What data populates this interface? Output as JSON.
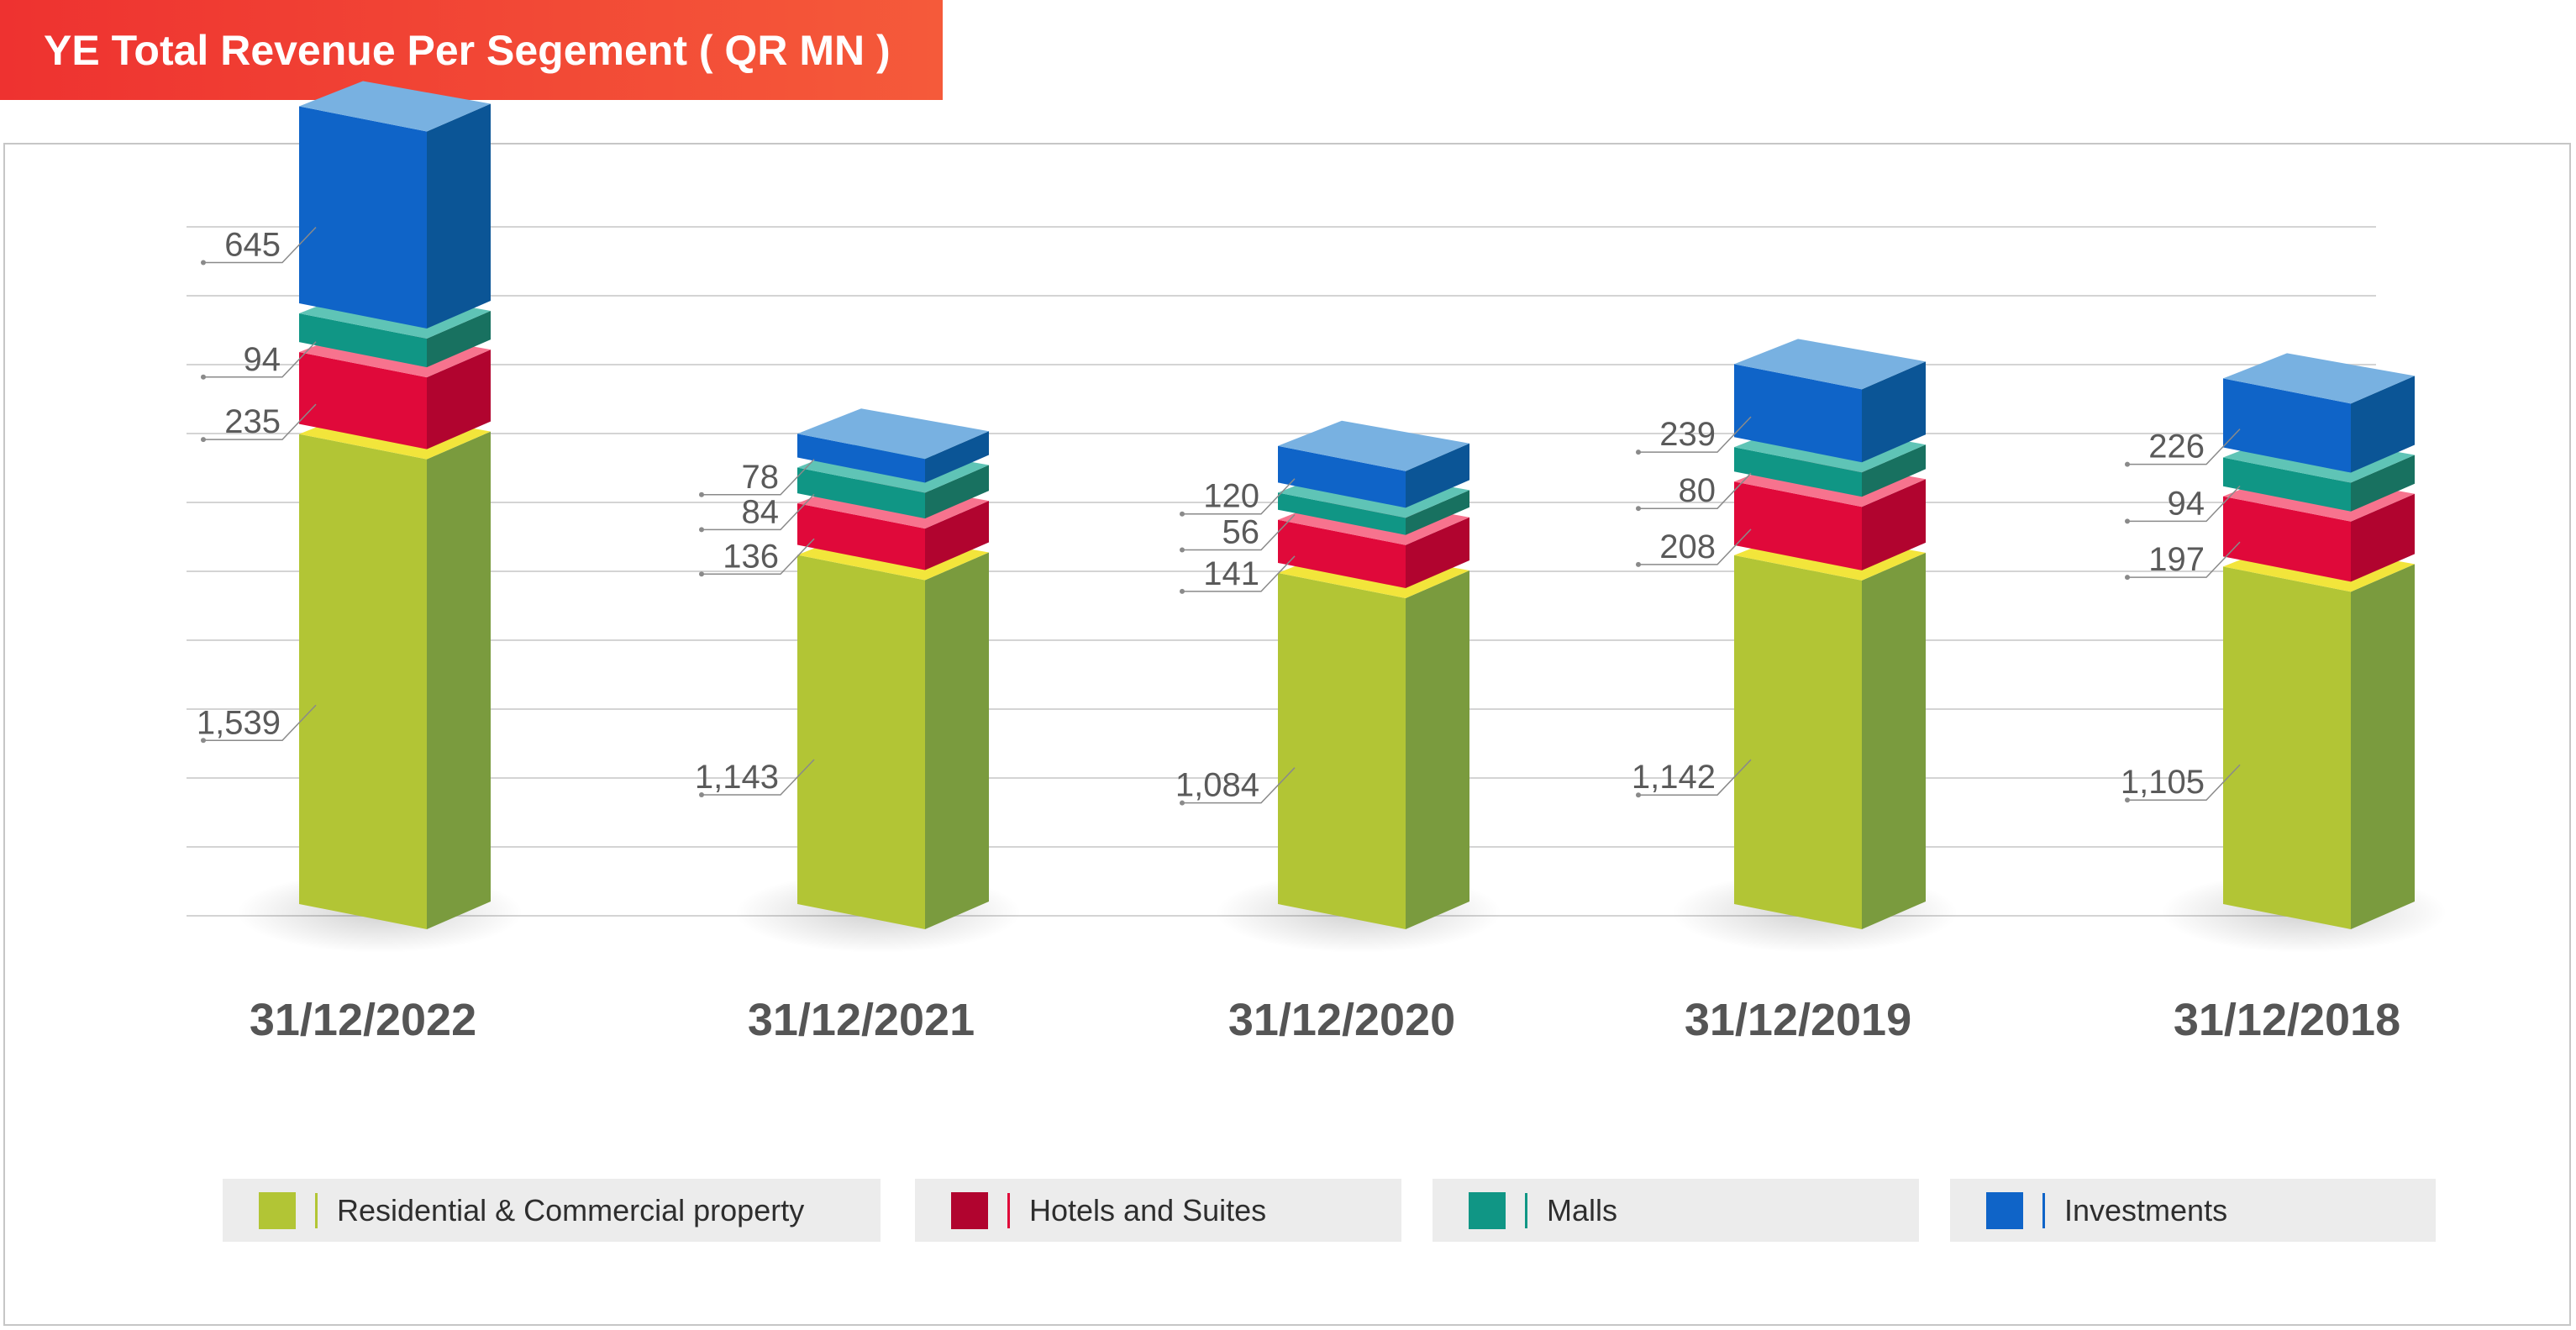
{
  "title": "YE Total Revenue Per Segement ( QR MN )",
  "colors": {
    "residential": {
      "front": "#b2c535",
      "side": "#7a9b3e",
      "top": "#f2e53b"
    },
    "hotels": {
      "front": "#e0093a",
      "side": "#b1042f",
      "top": "#f7738e"
    },
    "malls": {
      "front": "#109685",
      "side": "#187160",
      "top": "#5fc4b6"
    },
    "investments": {
      "front": "#0f64c8",
      "side": "#0b5596",
      "top": "#78b1e1"
    }
  },
  "chart_data": {
    "type": "bar",
    "stacked": true,
    "three_d": true,
    "title": "YE Total Revenue Per Segement ( QR MN )",
    "categories": [
      "31/12/2022",
      "31/12/2021",
      "31/12/2020",
      "31/12/2019",
      "31/12/2018"
    ],
    "series": [
      {
        "name": "Residential & Commercial property",
        "key": "residential",
        "values": [
          1539,
          1143,
          1084,
          1142,
          1105
        ],
        "labels": [
          "1,539",
          "1,143",
          "1,084",
          "1,142",
          "1,105"
        ]
      },
      {
        "name": "Hotels and Suites",
        "key": "hotels",
        "values": [
          235,
          136,
          141,
          208,
          197
        ],
        "labels": [
          "235",
          "136",
          "141",
          "208",
          "197"
        ]
      },
      {
        "name": "Malls",
        "key": "malls",
        "values": [
          94,
          84,
          56,
          80,
          94
        ],
        "labels": [
          "94",
          "84",
          "56",
          "80",
          "94"
        ]
      },
      {
        "name": "Investments",
        "key": "investments",
        "values": [
          645,
          78,
          120,
          239,
          226
        ],
        "labels": [
          "645",
          "78",
          "120",
          "239",
          "226"
        ]
      }
    ],
    "grid": true,
    "legend_position": "bottom"
  },
  "legend": [
    {
      "label": "Residential & Commercial property",
      "color": "#b2c535",
      "sep": "#b2c535"
    },
    {
      "label": "Hotels and Suites",
      "color": "#b1042f",
      "sep": "#e0093a"
    },
    {
      "label": "Malls",
      "color": "#109685",
      "sep": "#109685"
    },
    {
      "label": "Investments",
      "color": "#0f64c8",
      "sep": "#0f64c8"
    }
  ]
}
